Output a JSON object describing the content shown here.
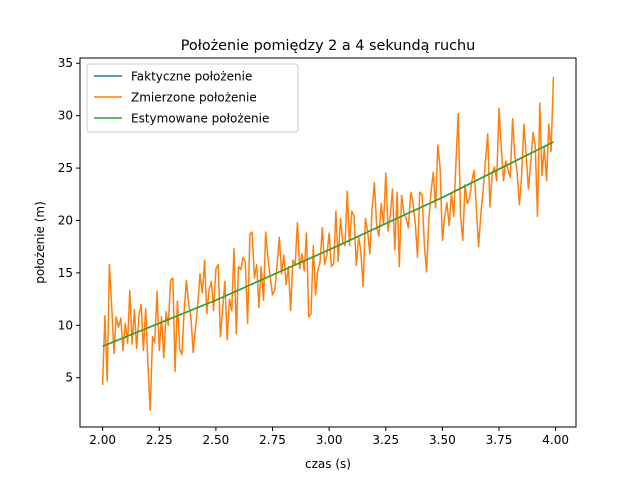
{
  "chart_data": {
    "type": "line",
    "title": "Położenie pomiędzy 2 a 4 sekundą ruchu",
    "xlabel": "czas (s)",
    "ylabel": "położenie (m)",
    "xlim": [
      1.9,
      4.09
    ],
    "ylim": [
      0.3,
      35.5
    ],
    "xticks": [
      2.0,
      2.25,
      2.5,
      2.75,
      3.0,
      3.25,
      3.5,
      3.75,
      4.0
    ],
    "xtick_labels": [
      "2.00",
      "2.25",
      "2.50",
      "2.75",
      "3.00",
      "3.25",
      "3.50",
      "3.75",
      "4.00"
    ],
    "yticks": [
      5,
      10,
      15,
      20,
      25,
      30,
      35
    ],
    "ytick_labels": [
      "5",
      "10",
      "15",
      "20",
      "25",
      "30",
      "35"
    ],
    "grid": false,
    "legend_position": "top-left",
    "series": [
      {
        "name": "Faktyczne położenie",
        "color": "#1f77b4",
        "x": [
          2.0,
          2.5,
          3.0,
          3.5,
          3.99
        ],
        "y": [
          8.0,
          12.4,
          17.2,
          22.2,
          27.5
        ]
      },
      {
        "name": "Zmierzone położenie",
        "color": "#ff7f0e",
        "x": [
          2.0,
          2.01,
          2.02,
          2.03,
          2.04,
          2.05,
          2.06,
          2.07,
          2.08,
          2.09,
          2.1,
          2.11,
          2.12,
          2.13,
          2.14,
          2.15,
          2.16,
          2.17,
          2.18,
          2.19,
          2.2,
          2.21,
          2.22,
          2.23,
          2.24,
          2.25,
          2.26,
          2.27,
          2.28,
          2.29,
          2.3,
          2.31,
          2.32,
          2.33,
          2.34,
          2.35,
          2.36,
          2.37,
          2.38,
          2.39,
          2.4,
          2.41,
          2.42,
          2.43,
          2.44,
          2.45,
          2.46,
          2.47,
          2.48,
          2.49,
          2.5,
          2.51,
          2.52,
          2.53,
          2.54,
          2.55,
          2.56,
          2.57,
          2.58,
          2.59,
          2.6,
          2.61,
          2.62,
          2.63,
          2.64,
          2.65,
          2.66,
          2.67,
          2.68,
          2.69,
          2.7,
          2.71,
          2.72,
          2.73,
          2.74,
          2.75,
          2.76,
          2.77,
          2.78,
          2.79,
          2.8,
          2.81,
          2.82,
          2.83,
          2.84,
          2.85,
          2.86,
          2.87,
          2.88,
          2.89,
          2.9,
          2.91,
          2.92,
          2.93,
          2.94,
          2.95,
          2.96,
          2.97,
          2.98,
          2.99,
          3.0,
          3.01,
          3.02,
          3.03,
          3.04,
          3.05,
          3.06,
          3.07,
          3.08,
          3.09,
          3.1,
          3.11,
          3.12,
          3.13,
          3.14,
          3.15,
          3.16,
          3.17,
          3.18,
          3.19,
          3.2,
          3.21,
          3.22,
          3.23,
          3.24,
          3.25,
          3.26,
          3.27,
          3.28,
          3.29,
          3.3,
          3.31,
          3.32,
          3.33,
          3.34,
          3.35,
          3.36,
          3.37,
          3.38,
          3.39,
          3.4,
          3.41,
          3.42,
          3.43,
          3.44,
          3.45,
          3.46,
          3.47,
          3.48,
          3.49,
          3.5,
          3.51,
          3.52,
          3.53,
          3.54,
          3.55,
          3.56,
          3.57,
          3.58,
          3.59,
          3.6,
          3.61,
          3.62,
          3.63,
          3.64,
          3.65,
          3.66,
          3.67,
          3.68,
          3.69,
          3.7,
          3.71,
          3.72,
          3.73,
          3.74,
          3.75,
          3.76,
          3.77,
          3.78,
          3.79,
          3.8,
          3.81,
          3.82,
          3.83,
          3.84,
          3.85,
          3.86,
          3.87,
          3.88,
          3.89,
          3.9,
          3.91,
          3.92,
          3.93,
          3.94,
          3.95,
          3.96,
          3.97,
          3.98,
          3.99
        ],
        "y": [
          4.3,
          10.9,
          4.7,
          15.8,
          11.8,
          7.3,
          10.8,
          9.8,
          10.7,
          7.6,
          10.2,
          8.3,
          13.3,
          8.2,
          11.5,
          7.8,
          10.9,
          12.0,
          7.6,
          11.6,
          6.3,
          1.9,
          8.9,
          8.3,
          13.2,
          7.6,
          10.8,
          6.9,
          11.3,
          10.0,
          14.3,
          14.5,
          5.6,
          12.3,
          7.7,
          7.2,
          11.4,
          14.3,
          12.0,
          10.7,
          7.4,
          9.7,
          12.0,
          14.9,
          13.1,
          16.2,
          11.1,
          13.4,
          14.2,
          11.4,
          15.4,
          15.8,
          8.9,
          11.6,
          14.2,
          8.6,
          12.5,
          11.4,
          17.3,
          9.2,
          15.6,
          15.3,
          16.5,
          16.0,
          10.2,
          18.7,
          18.9,
          14.5,
          15.8,
          11.7,
          15.6,
          12.4,
          18.9,
          16.4,
          14.6,
          12.9,
          13.4,
          15.6,
          18.4,
          14.9,
          16.7,
          13.9,
          15.6,
          11.4,
          16.2,
          15.8,
          19.8,
          15.4,
          16.8,
          15.2,
          18.8,
          10.8,
          11.1,
          17.6,
          12.9,
          15.2,
          16.1,
          19.3,
          15.8,
          16.7,
          18.8,
          15.6,
          15.9,
          20.9,
          16.1,
          20.2,
          18.0,
          17.6,
          22.8,
          17.6,
          20.9,
          20.4,
          15.7,
          18.4,
          17.1,
          13.7,
          20.2,
          19.0,
          16.8,
          21.3,
          23.6,
          19.4,
          18.5,
          21.6,
          19.6,
          24.5,
          19.0,
          20.5,
          23.0,
          17.2,
          22.7,
          15.6,
          22.4,
          20.7,
          20.2,
          19.3,
          22.7,
          21.8,
          19.8,
          16.5,
          22.7,
          22.5,
          17.8,
          15.1,
          20.0,
          22.8,
          24.6,
          21.2,
          27.2,
          25.0,
          18.1,
          20.3,
          21.7,
          19.5,
          22.6,
          20.4,
          25.6,
          30.2,
          20.5,
          18.1,
          23.4,
          21.6,
          22.2,
          23.7,
          24.8,
          21.3,
          17.5,
          20.7,
          22.8,
          25.6,
          28.3,
          21.3,
          24.5,
          25.1,
          23.8,
          30.7,
          26.9,
          23.8,
          25.7,
          24.8,
          24.1,
          29.7,
          26.2,
          24.6,
          21.5,
          24.2,
          29.2,
          26.2,
          23.0,
          25.5,
          28.4,
          27.2,
          20.4,
          31.2,
          24.3,
          27.0,
          23.8,
          29.2,
          26.6,
          33.7
        ]
      },
      {
        "name": "Estymowane położenie",
        "color": "#2ca02c",
        "x": [
          2.0,
          2.5,
          3.0,
          3.5,
          3.99
        ],
        "y": [
          8.0,
          12.4,
          17.2,
          22.2,
          27.5
        ]
      }
    ]
  }
}
